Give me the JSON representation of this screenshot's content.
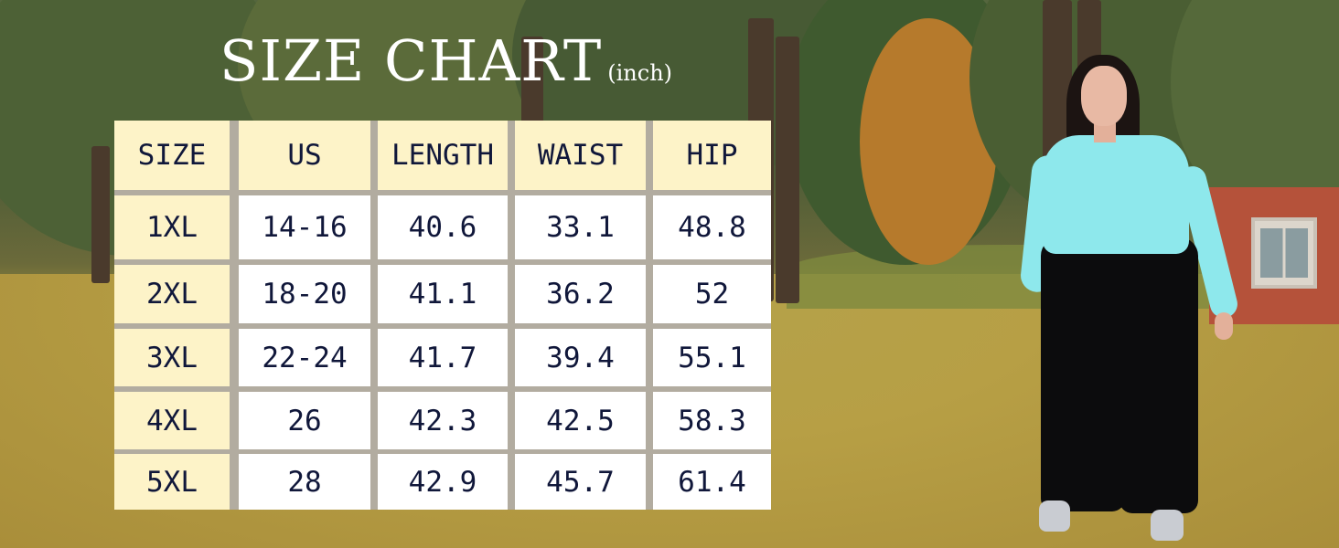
{
  "title": {
    "main": "SIZE CHART",
    "unit": "(inch)"
  },
  "table": {
    "headers": [
      "SIZE",
      "US",
      "LENGTH",
      "WAIST",
      "HIP"
    ],
    "rows": [
      [
        "1XL",
        "14-16",
        "40.6",
        "33.1",
        "48.8"
      ],
      [
        "2XL",
        "18-20",
        "41.1",
        "36.2",
        "52"
      ],
      [
        "3XL",
        "22-24",
        "41.7",
        "39.4",
        "55.1"
      ],
      [
        "4XL",
        "26",
        "42.3",
        "42.5",
        "58.3"
      ],
      [
        "5XL",
        "28",
        "42.9",
        "45.7",
        "61.4"
      ]
    ]
  },
  "colors": {
    "header_fill": "#fdf3c8",
    "value_fill": "#ffffff",
    "text": "#10173a",
    "grid": "#b2aca0",
    "shirt": "#8ee8ec",
    "pants": "#0c0c0d"
  }
}
